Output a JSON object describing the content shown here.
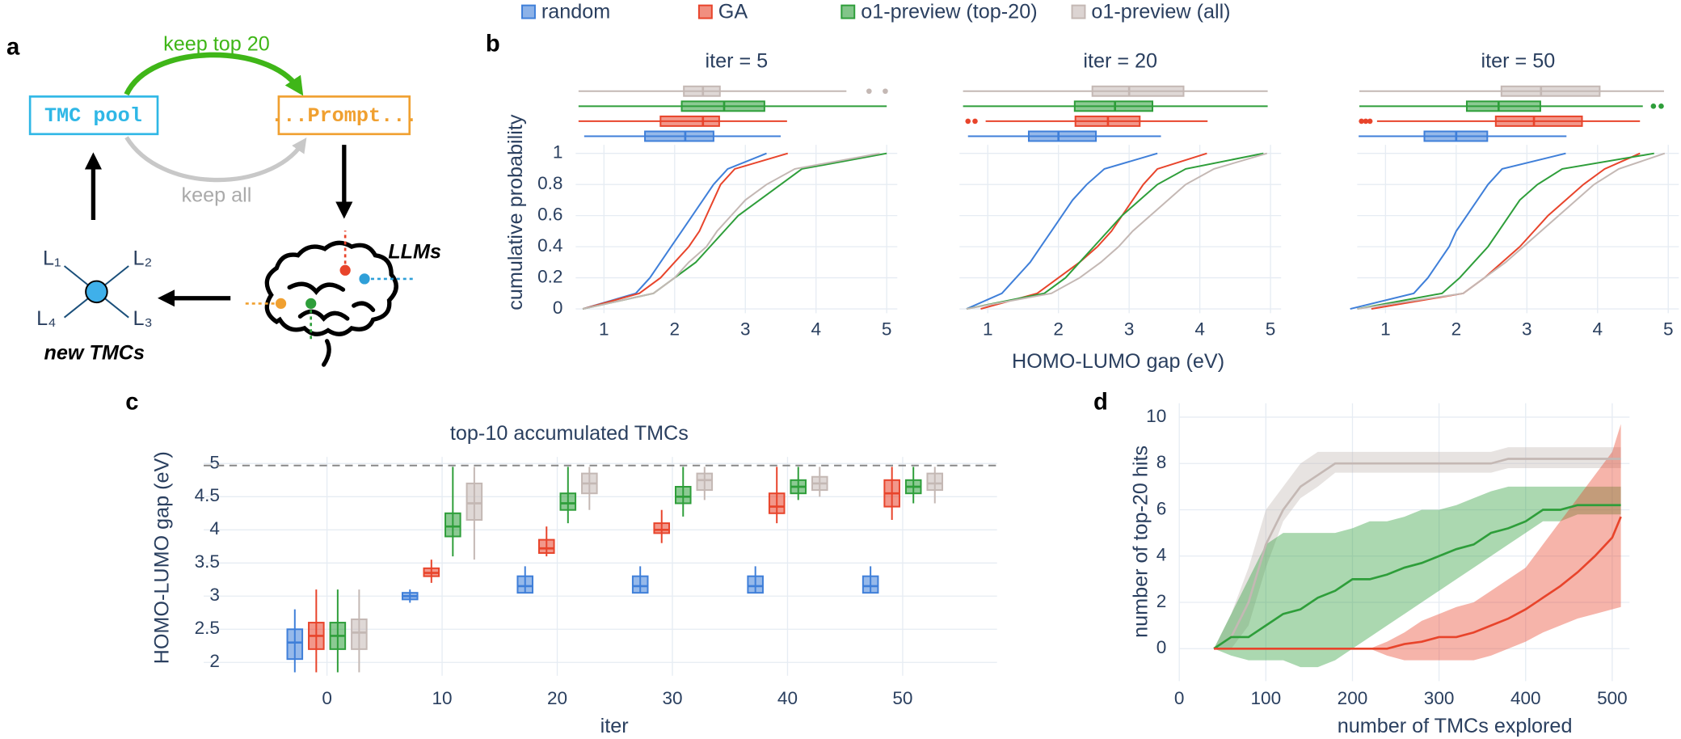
{
  "diagram": {
    "label": "a",
    "keep_top": "keep top 20",
    "pool": "TMC pool",
    "prompt": "...Prompt...",
    "keep_all": "keep all",
    "llms": "LLMs",
    "ligands": [
      "L₁",
      "L₂",
      "L₃",
      "L₄"
    ],
    "new": "new TMCs"
  },
  "legend": [
    {
      "name": "random",
      "color": "#3f7fd9"
    },
    {
      "name": "GA",
      "color": "#e8442b"
    },
    {
      "name": "o1-preview (top-20)",
      "color": "#2e9e3a"
    },
    {
      "name": "o1-preview (all)",
      "color": "#c4b8b4"
    }
  ],
  "chart_data": [
    {
      "type": "cdf_box",
      "panel_label": "b",
      "title": "iter = 5",
      "ylabel": "cumulative probability",
      "xlabel": "HOMO-LUMO gap (eV)",
      "xlim": [
        0.6,
        5.15
      ],
      "xticks": [
        1,
        2,
        3,
        4,
        5
      ],
      "ylim": [
        0,
        1
      ],
      "yticks": [
        0,
        0.2,
        0.4,
        0.6,
        0.8,
        1
      ],
      "levels": [
        0,
        0.1,
        0.2,
        0.3,
        0.4,
        0.5,
        0.6,
        0.7,
        0.8,
        0.9,
        1
      ],
      "series": [
        {
          "color": "#3f7fd9",
          "x": [
            0.7,
            1.45,
            1.65,
            1.8,
            1.95,
            2.1,
            2.25,
            2.4,
            2.55,
            2.75,
            3.3
          ],
          "box": [
            0.72,
            1.58,
            2.15,
            2.55,
            3.5
          ],
          "outliers": []
        },
        {
          "color": "#e8442b",
          "x": [
            0.7,
            1.5,
            1.8,
            2.0,
            2.2,
            2.35,
            2.45,
            2.55,
            2.65,
            2.85,
            3.6
          ],
          "box": [
            0.64,
            1.8,
            2.4,
            2.63,
            3.59
          ],
          "outliers": []
        },
        {
          "color": "#2e9e3a",
          "x": [
            0.7,
            1.7,
            2.0,
            2.3,
            2.5,
            2.7,
            2.9,
            3.2,
            3.5,
            3.8,
            5.0
          ],
          "box": [
            0.64,
            2.1,
            2.7,
            3.27,
            5.0
          ],
          "outliers": []
        },
        {
          "color": "#c4b8b4",
          "x": [
            0.7,
            1.7,
            2.0,
            2.2,
            2.45,
            2.6,
            2.8,
            3.0,
            3.3,
            3.7,
            4.9
          ],
          "box": [
            0.64,
            2.13,
            2.4,
            2.64,
            4.43
          ],
          "outliers": [
            4.75,
            4.98
          ]
        }
      ]
    },
    {
      "type": "cdf_box",
      "title": "iter = 20",
      "xlim": [
        0.6,
        5.15
      ],
      "xticks": [
        1,
        2,
        3,
        4,
        5
      ],
      "ylim": [
        0,
        1
      ],
      "yticks": [
        0,
        0.2,
        0.4,
        0.6,
        0.8,
        1
      ],
      "levels": [
        0,
        0.1,
        0.2,
        0.3,
        0.4,
        0.5,
        0.6,
        0.7,
        0.8,
        0.9,
        1
      ],
      "series": [
        {
          "color": "#3f7fd9",
          "x": [
            0.7,
            1.2,
            1.4,
            1.6,
            1.75,
            1.9,
            2.05,
            2.2,
            2.4,
            2.65,
            3.4
          ],
          "box": [
            0.72,
            1.58,
            2.0,
            2.53,
            3.45
          ],
          "outliers": []
        },
        {
          "color": "#e8442b",
          "x": [
            0.9,
            1.7,
            2.0,
            2.3,
            2.55,
            2.75,
            2.9,
            3.05,
            3.2,
            3.4,
            4.1
          ],
          "box": [
            0.97,
            2.24,
            2.7,
            3.15,
            4.11
          ],
          "outliers": [
            0.72,
            0.82
          ]
        },
        {
          "color": "#2e9e3a",
          "x": [
            0.7,
            1.8,
            2.1,
            2.3,
            2.5,
            2.7,
            2.9,
            3.15,
            3.4,
            3.8,
            4.9
          ],
          "box": [
            0.65,
            2.23,
            2.8,
            3.33,
            4.96
          ],
          "outliers": []
        },
        {
          "color": "#c4b8b4",
          "x": [
            0.7,
            1.9,
            2.3,
            2.6,
            2.85,
            3.05,
            3.3,
            3.55,
            3.8,
            4.2,
            4.95
          ],
          "box": [
            0.65,
            2.48,
            3.0,
            3.77,
            4.96
          ],
          "outliers": []
        }
      ]
    },
    {
      "type": "cdf_box",
      "title": "iter = 50",
      "xlim": [
        0.6,
        5.15
      ],
      "xticks": [
        1,
        2,
        3,
        4,
        5
      ],
      "ylim": [
        0,
        1
      ],
      "yticks": [
        0,
        0.2,
        0.4,
        0.6,
        0.8,
        1
      ],
      "levels": [
        0,
        0.1,
        0.2,
        0.3,
        0.4,
        0.5,
        0.6,
        0.7,
        0.8,
        0.9,
        1
      ],
      "series": [
        {
          "color": "#3f7fd9",
          "x": [
            0.5,
            1.4,
            1.6,
            1.75,
            1.9,
            2.0,
            2.15,
            2.3,
            2.45,
            2.65,
            3.55
          ],
          "box": [
            0.62,
            1.55,
            2.0,
            2.44,
            3.56
          ],
          "outliers": []
        },
        {
          "color": "#e8442b",
          "x": [
            0.8,
            2.1,
            2.4,
            2.65,
            2.9,
            3.1,
            3.3,
            3.55,
            3.8,
            4.1,
            4.6
          ],
          "box": [
            0.88,
            2.56,
            3.1,
            3.78,
            4.6
          ],
          "outliers": [
            0.66,
            0.72,
            0.78
          ]
        },
        {
          "color": "#2e9e3a",
          "x": [
            0.6,
            1.8,
            2.05,
            2.25,
            2.45,
            2.6,
            2.75,
            2.9,
            3.15,
            3.5,
            4.8
          ],
          "box": [
            0.63,
            2.15,
            2.6,
            3.19,
            4.64
          ],
          "outliers": [
            4.79,
            4.9
          ]
        },
        {
          "color": "#c4b8b4",
          "x": [
            0.6,
            2.1,
            2.4,
            2.7,
            2.95,
            3.2,
            3.45,
            3.7,
            3.95,
            4.3,
            4.95
          ],
          "box": [
            0.63,
            2.64,
            3.2,
            4.03,
            4.94
          ],
          "outliers": []
        }
      ]
    },
    {
      "type": "box",
      "panel_label": "c",
      "title": "top-10 accumulated TMCs",
      "xlabel": "iter",
      "ylabel": "HOMO-LUMO gap (eV)",
      "categories": [
        "0",
        "10",
        "20",
        "30",
        "40",
        "50"
      ],
      "ylim": [
        1.88,
        5.1
      ],
      "yticks": [
        2,
        2.5,
        3,
        3.5,
        4,
        4.5,
        5
      ],
      "reference_line": 4.97,
      "series": [
        {
          "color": "#3f7fd9",
          "boxes": [
            [
              1.85,
              2.05,
              2.3,
              2.5,
              2.8
            ],
            [
              2.9,
              2.95,
              3.0,
              3.05,
              3.1
            ],
            [
              3.05,
              3.05,
              3.15,
              3.3,
              3.45
            ],
            [
              3.05,
              3.05,
              3.15,
              3.3,
              3.45
            ],
            [
              3.05,
              3.05,
              3.15,
              3.3,
              3.45
            ],
            [
              3.05,
              3.05,
              3.15,
              3.3,
              3.45
            ]
          ]
        },
        {
          "color": "#e8442b",
          "boxes": [
            [
              1.85,
              2.2,
              2.4,
              2.6,
              3.1
            ],
            [
              3.2,
              3.3,
              3.35,
              3.42,
              3.55
            ],
            [
              3.6,
              3.65,
              3.72,
              3.85,
              4.05
            ],
            [
              3.8,
              3.95,
              4.0,
              4.1,
              4.3
            ],
            [
              4.1,
              4.25,
              4.35,
              4.55,
              4.95
            ],
            [
              4.15,
              4.35,
              4.55,
              4.75,
              4.95
            ]
          ]
        },
        {
          "color": "#2e9e3a",
          "boxes": [
            [
              1.85,
              2.2,
              2.4,
              2.6,
              3.1
            ],
            [
              3.6,
              3.9,
              4.05,
              4.25,
              4.95
            ],
            [
              4.1,
              4.3,
              4.4,
              4.55,
              4.95
            ],
            [
              4.2,
              4.4,
              4.5,
              4.65,
              4.95
            ],
            [
              4.45,
              4.55,
              4.65,
              4.75,
              4.95
            ],
            [
              4.4,
              4.55,
              4.65,
              4.75,
              4.95
            ]
          ]
        },
        {
          "color": "#c4b8b4",
          "boxes": [
            [
              1.85,
              2.2,
              2.45,
              2.65,
              3.1
            ],
            [
              3.55,
              4.15,
              4.4,
              4.7,
              4.95
            ],
            [
              4.3,
              4.55,
              4.7,
              4.85,
              4.95
            ],
            [
              4.45,
              4.6,
              4.75,
              4.85,
              4.95
            ],
            [
              4.5,
              4.6,
              4.7,
              4.8,
              4.95
            ],
            [
              4.4,
              4.6,
              4.7,
              4.85,
              4.95
            ]
          ]
        }
      ]
    },
    {
      "type": "line_band",
      "panel_label": "d",
      "xlabel": "number of TMCs explored",
      "ylabel": "number of top-20 hits",
      "xlim": [
        0,
        520
      ],
      "xticks": [
        0,
        100,
        200,
        300,
        400,
        500
      ],
      "ylim": [
        -1.4,
        10.6
      ],
      "yticks": [
        0,
        2,
        4,
        6,
        8,
        10
      ],
      "x": [
        40,
        60,
        80,
        100,
        120,
        140,
        160,
        180,
        200,
        220,
        240,
        260,
        280,
        300,
        320,
        340,
        360,
        380,
        400,
        420,
        440,
        460,
        480,
        500,
        510
      ],
      "series": [
        {
          "color": "#c4b8b4",
          "values": [
            0,
            0.5,
            2,
            4.5,
            6,
            7,
            7.5,
            8,
            8,
            8,
            8,
            8,
            8,
            8,
            8,
            8,
            8,
            8.2,
            8.2,
            8.2,
            8.2,
            8.2,
            8.2,
            8.2,
            8.2
          ],
          "lower": [
            0,
            0,
            1,
            3.5,
            5.5,
            6.5,
            7,
            7.6,
            7.6,
            7.6,
            7.6,
            7.6,
            7.6,
            7.6,
            7.6,
            7.6,
            7.6,
            7.8,
            7.8,
            7.8,
            7.8,
            7.8,
            7.8,
            7.8,
            7.8
          ],
          "upper": [
            0,
            1.5,
            3.5,
            6,
            7,
            8,
            8.5,
            8.5,
            8.5,
            8.5,
            8.5,
            8.5,
            8.5,
            8.5,
            8.5,
            8.5,
            8.5,
            8.7,
            8.7,
            8.7,
            8.7,
            8.7,
            8.7,
            8.7,
            8.7
          ]
        },
        {
          "color": "#2e9e3a",
          "values": [
            0,
            0.5,
            0.5,
            1,
            1.5,
            1.7,
            2.2,
            2.5,
            3,
            3,
            3.2,
            3.5,
            3.7,
            4,
            4.3,
            4.5,
            5,
            5.2,
            5.5,
            6,
            6,
            6.2,
            6.2,
            6.2,
            6.2
          ],
          "lower": [
            0,
            -0.3,
            -0.5,
            -0.5,
            -0.5,
            -0.8,
            -0.8,
            -0.5,
            0,
            0.5,
            1,
            1.5,
            2,
            2.5,
            3,
            3.5,
            4,
            4.5,
            5,
            5.5,
            5.5,
            5.8,
            5.8,
            5.8,
            5.8
          ],
          "upper": [
            0,
            1.5,
            3,
            4.5,
            5,
            5,
            5,
            5,
            5.2,
            5.5,
            5.5,
            5.7,
            6,
            6,
            6.2,
            6.5,
            6.8,
            7,
            7,
            7,
            7,
            7,
            7,
            7,
            7
          ]
        },
        {
          "color": "#e8442b",
          "values": [
            0,
            0,
            0,
            0,
            0,
            0,
            0,
            0,
            0,
            0,
            0,
            0.2,
            0.3,
            0.5,
            0.5,
            0.7,
            1,
            1.3,
            1.7,
            2.2,
            2.7,
            3.3,
            4,
            4.8,
            5.7
          ],
          "lower": [
            0,
            0,
            0,
            0,
            0,
            0,
            0,
            0,
            0,
            0,
            -0.3,
            -0.5,
            -0.5,
            -0.5,
            -0.5,
            -0.5,
            -0.3,
            0,
            0.3,
            0.7,
            1,
            1.3,
            1.5,
            1.7,
            1.8
          ],
          "upper": [
            0,
            0,
            0,
            0,
            0,
            0,
            0,
            0,
            0,
            0,
            0.3,
            0.7,
            1.2,
            1.5,
            1.8,
            2,
            2.5,
            3,
            3.5,
            4.5,
            5.5,
            6.5,
            7.5,
            8.5,
            9.7
          ]
        }
      ]
    }
  ]
}
